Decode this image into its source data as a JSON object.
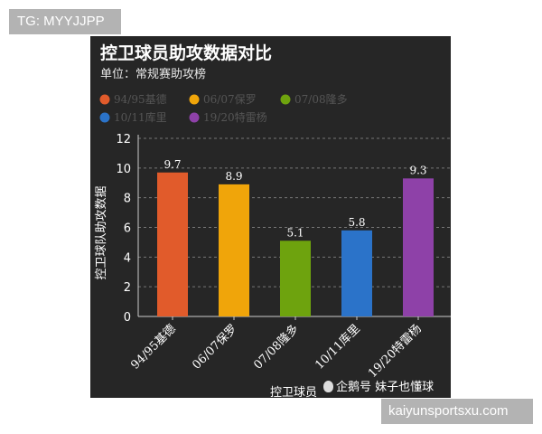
{
  "tags": {
    "top_left": "TG: MYYJJPP",
    "bottom_right": "kaiyunsportsxu.com"
  },
  "watermark": {
    "icon": "penguin-icon",
    "text": "企鹅号 妹子也懂球"
  },
  "chart_data": {
    "type": "bar",
    "title": "控卫球员助攻数据对比",
    "subtitle": "单位：常规赛助攻榜",
    "xlabel": "控卫球员",
    "ylabel": "控卫球队助攻数据",
    "categories": [
      "94/95基德",
      "06/07保罗",
      "07/08隆多",
      "10/11库里",
      "19/20特雷杨"
    ],
    "values": [
      9.7,
      8.9,
      5.1,
      5.8,
      9.3
    ],
    "value_labels": [
      "9.7",
      "8.9",
      "5.1",
      "5.8",
      "9.3"
    ],
    "colors": [
      "#e15b2b",
      "#f0a50a",
      "#6ea30e",
      "#2b73c9",
      "#8e41a8"
    ],
    "ylim": [
      0,
      12
    ],
    "yticks": [
      "0",
      "2",
      "4",
      "6",
      "8",
      "10",
      "12"
    ],
    "grid": true,
    "legend_position": "top"
  }
}
